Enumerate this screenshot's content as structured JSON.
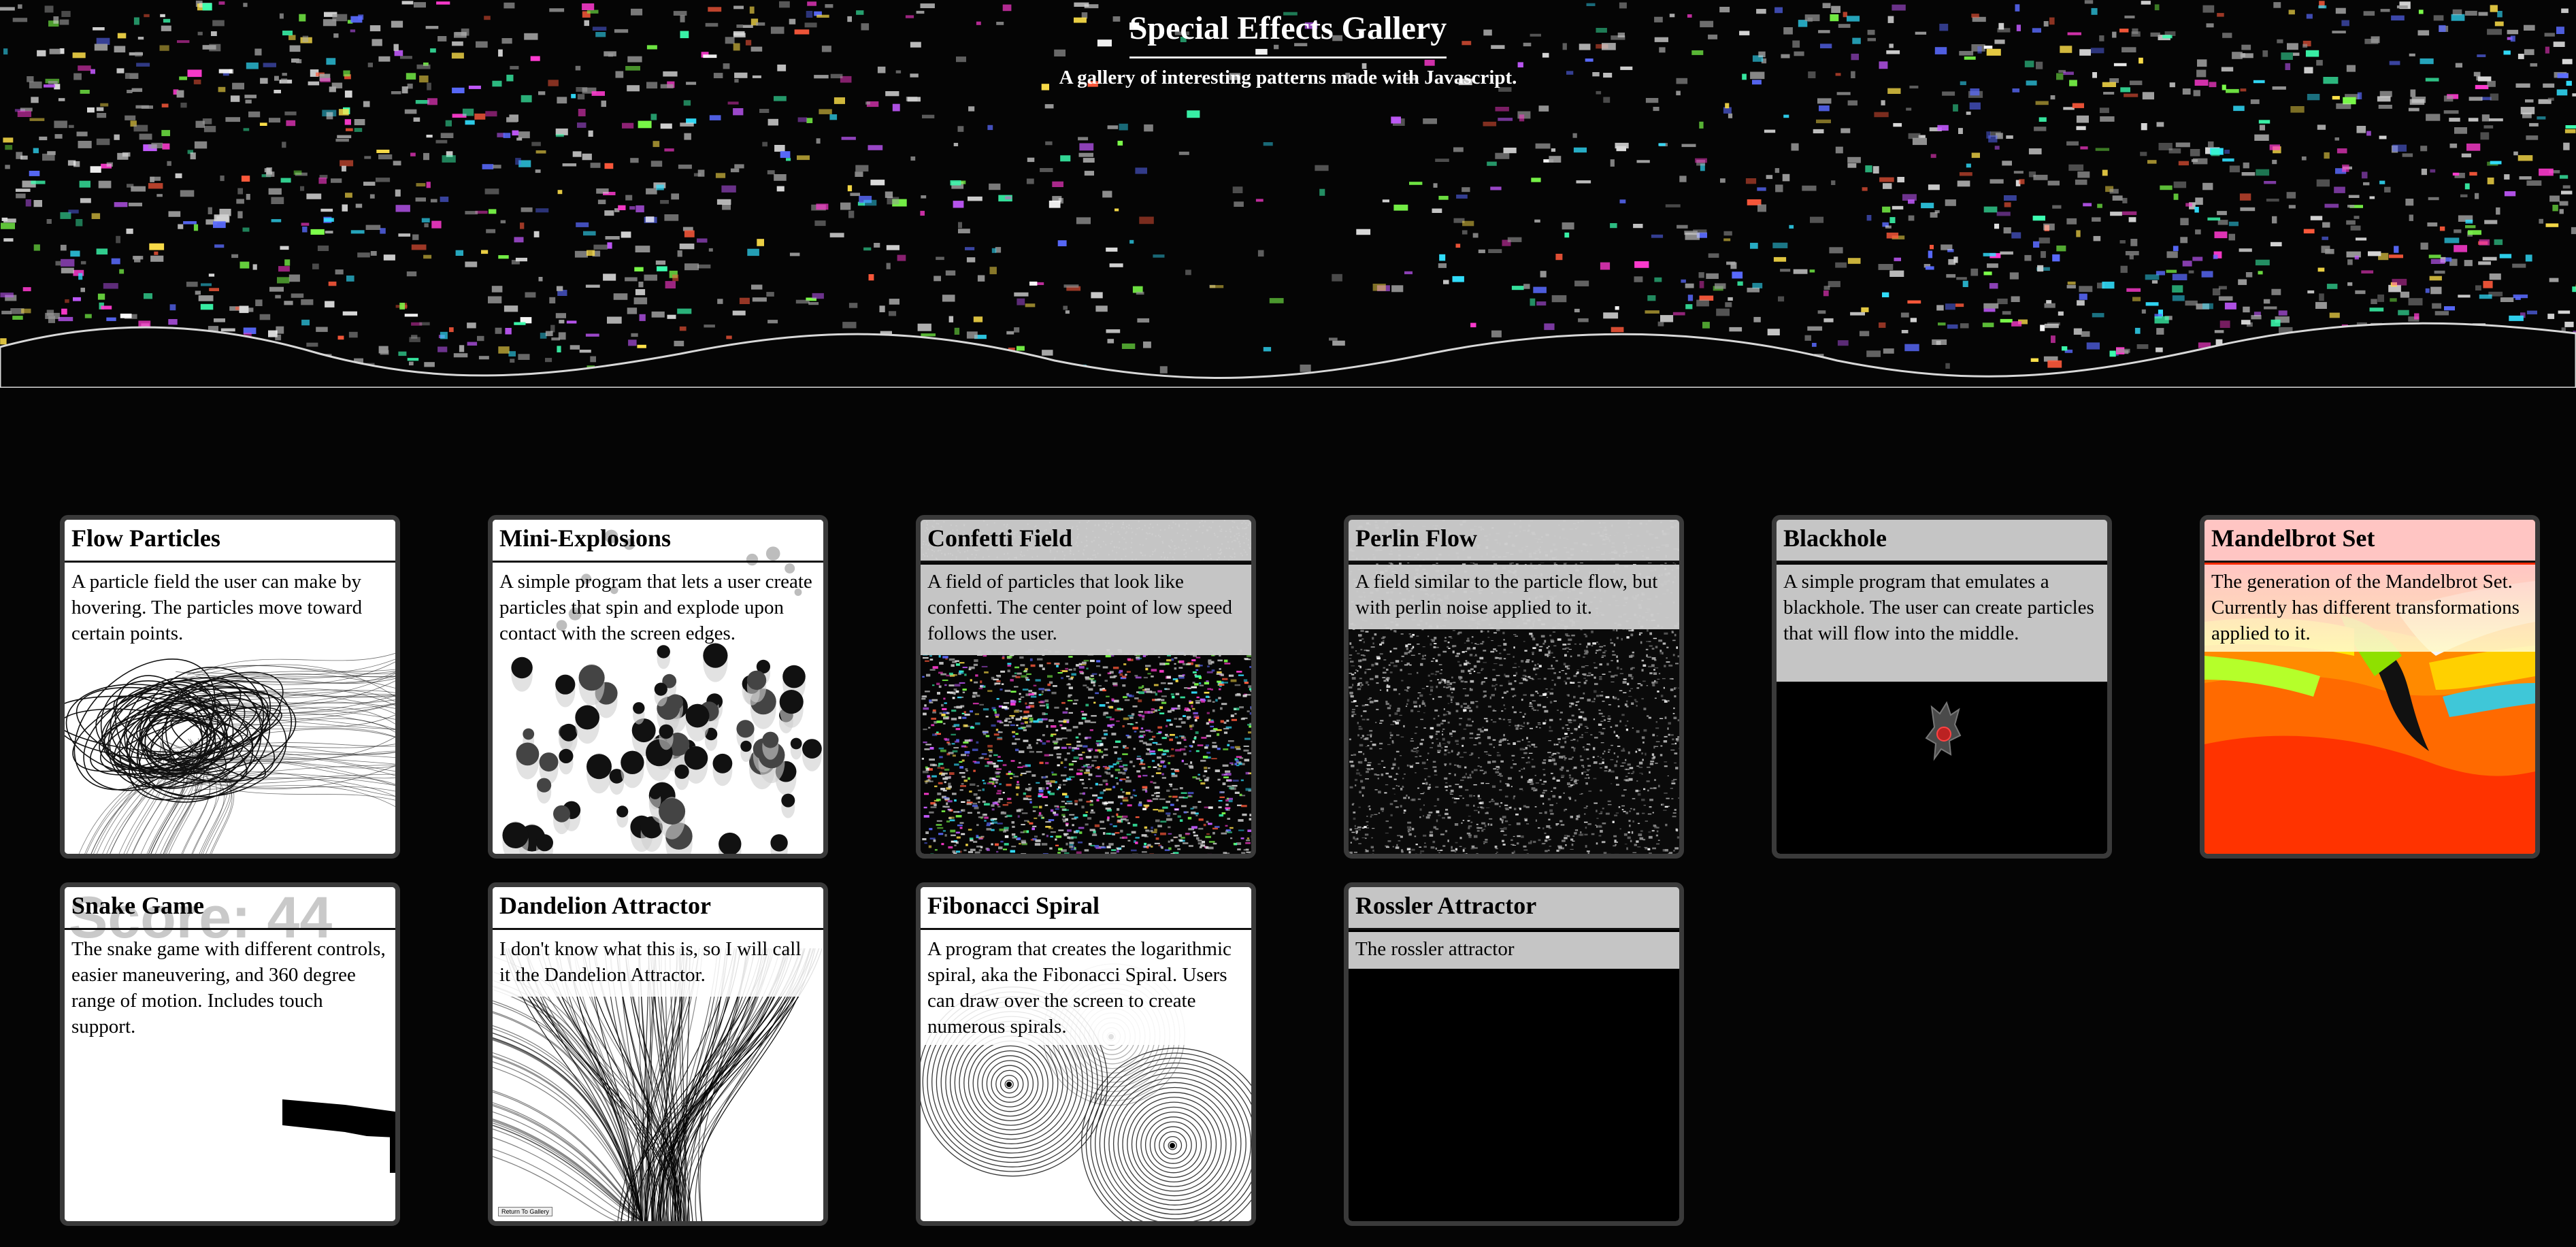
{
  "header": {
    "title": "Special Effects Gallery",
    "subtitle": "A gallery of interesting patterns made with Javascript."
  },
  "gallery": [
    {
      "title": "Flow Particles",
      "description": "A particle field the user can make by hovering. The particles move toward certain points."
    },
    {
      "title": "Mini-Explosions",
      "description": "A simple program that lets a user create particles that spin and explode upon contact with the screen edges."
    },
    {
      "title": "Confetti Field",
      "description": "A field of particles that look like confetti. The center point of low speed follows the user."
    },
    {
      "title": "Perlin Flow",
      "description": "A field similar to the particle flow, but with perlin noise applied to it."
    },
    {
      "title": "Blackhole",
      "description": "A simple program that emulates a blackhole. The user can create particles that will flow into the middle."
    },
    {
      "title": "Mandelbrot Set",
      "description": "The generation of the Mandelbrot Set. Currently has different transformations applied to it."
    },
    {
      "title": "Snake Game",
      "description": "The snake game with different controls, easier maneuvering, and 360 degree range of motion. Includes touch support.",
      "overlay_text": "Score: 44"
    },
    {
      "title": "Dandelion Attractor",
      "description": "I don't know what this is, so I will call it the Dandelion Attractor.",
      "overlay_text": "Return To Gallery"
    },
    {
      "title": "Fibonacci Spiral",
      "description": "A program that creates the logarithmic spiral, aka the Fibonacci Spiral. Users can draw over the screen to create numerous spirals."
    },
    {
      "title": "Rossler Attractor",
      "description": "The rossler attractor"
    }
  ],
  "colors": {
    "background": "#050505",
    "card_border": "#3a3a3a",
    "band_grey": "#cdcdcd",
    "mandelbrot_band": "#ffcece"
  }
}
